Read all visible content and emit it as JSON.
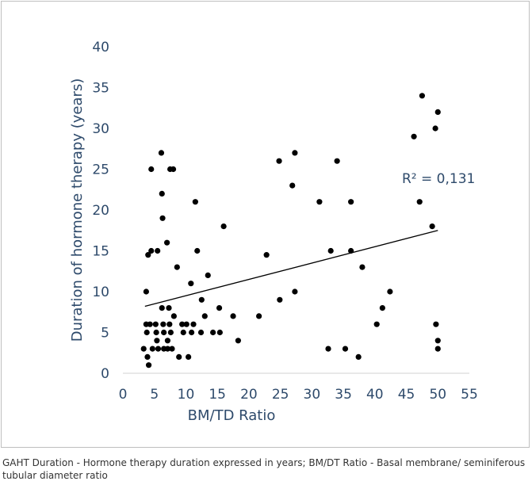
{
  "chart_data": {
    "type": "scatter",
    "xlabel": "BM/TD Ratio",
    "ylabel": "Duration of hormone therapy (years)",
    "xlim": [
      0,
      55
    ],
    "ylim": [
      0,
      40
    ],
    "x_ticks": [
      "0",
      "5",
      "10",
      "15",
      "20",
      "25",
      "30",
      "35",
      "40",
      "45",
      "50",
      "55"
    ],
    "y_ticks": [
      "0",
      "5",
      "10",
      "15",
      "20",
      "25",
      "30",
      "35",
      "40"
    ],
    "annotation": "R² = 0,131",
    "trendline": {
      "x": [
        3.5,
        50
      ],
      "y": [
        8.2,
        17.5
      ]
    },
    "series": [
      {
        "points": [
          [
            3.3,
            3
          ],
          [
            3.7,
            10
          ],
          [
            3.7,
            6
          ],
          [
            3.8,
            5
          ],
          [
            3.9,
            2
          ],
          [
            4.1,
            1
          ],
          [
            4.0,
            14.5
          ],
          [
            4.5,
            25
          ],
          [
            4.3,
            6
          ],
          [
            4.5,
            15
          ],
          [
            4.7,
            3
          ],
          [
            5.2,
            6
          ],
          [
            5.3,
            5
          ],
          [
            5.4,
            4
          ],
          [
            5.5,
            15
          ],
          [
            5.6,
            3
          ],
          [
            6.1,
            27
          ],
          [
            6.2,
            22
          ],
          [
            6.3,
            19
          ],
          [
            6.2,
            8
          ],
          [
            6.4,
            6
          ],
          [
            6.5,
            5
          ],
          [
            6.5,
            3
          ],
          [
            7.0,
            16
          ],
          [
            7.1,
            4
          ],
          [
            7.1,
            3
          ],
          [
            7.3,
            8
          ],
          [
            7.4,
            6
          ],
          [
            7.5,
            25
          ],
          [
            7.6,
            5
          ],
          [
            7.8,
            3
          ],
          [
            8.0,
            25
          ],
          [
            8.1,
            7
          ],
          [
            8.6,
            13
          ],
          [
            8.9,
            2
          ],
          [
            9.4,
            6
          ],
          [
            9.6,
            5
          ],
          [
            10.1,
            6
          ],
          [
            10.4,
            2
          ],
          [
            10.8,
            11
          ],
          [
            10.9,
            5
          ],
          [
            11.2,
            6
          ],
          [
            11.5,
            21
          ],
          [
            11.8,
            15
          ],
          [
            12.5,
            9
          ],
          [
            12.4,
            5
          ],
          [
            13.0,
            7
          ],
          [
            13.5,
            12
          ],
          [
            14.3,
            5
          ],
          [
            15.3,
            8
          ],
          [
            15.4,
            5
          ],
          [
            16.0,
            18
          ],
          [
            17.5,
            7
          ],
          [
            18.3,
            4
          ],
          [
            21.6,
            7
          ],
          [
            22.8,
            14.5
          ],
          [
            24.8,
            26
          ],
          [
            24.9,
            9
          ],
          [
            26.9,
            23
          ],
          [
            27.3,
            27
          ],
          [
            27.3,
            10
          ],
          [
            31.2,
            21
          ],
          [
            32.6,
            3
          ],
          [
            33.0,
            15
          ],
          [
            34.0,
            26
          ],
          [
            35.3,
            3
          ],
          [
            36.2,
            21
          ],
          [
            36.2,
            15
          ],
          [
            37.4,
            2
          ],
          [
            38.0,
            13
          ],
          [
            40.3,
            6
          ],
          [
            41.2,
            8
          ],
          [
            42.4,
            10
          ],
          [
            46.2,
            29
          ],
          [
            47.1,
            21
          ],
          [
            47.5,
            34
          ],
          [
            49.1,
            18
          ],
          [
            49.6,
            30
          ],
          [
            50.0,
            32
          ],
          [
            49.7,
            6
          ],
          [
            50.0,
            4
          ],
          [
            50.0,
            3
          ]
        ]
      }
    ]
  },
  "caption": "GAHT Duration - Hormone therapy duration expressed in years; BM/DT Ratio - Basal membrane/ seminiferous tubular diameter ratio"
}
